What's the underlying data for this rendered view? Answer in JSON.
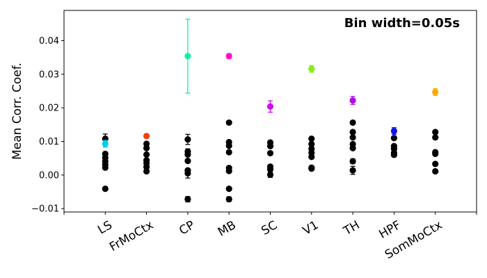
{
  "chart_data": {
    "type": "scatter",
    "annotation": "Bin width=0.05s",
    "ylabel": "Mean Corr. Coef.",
    "xlabel": "",
    "categories": [
      "LS",
      "FrMoCtx",
      "CP",
      "MB",
      "SC",
      "V1",
      "TH",
      "HPF",
      "SomMoCtx"
    ],
    "ylim": [
      -0.011,
      0.049
    ],
    "yticks": [
      -0.01,
      0.0,
      0.01,
      0.02,
      0.03,
      0.04
    ],
    "ytick_labels": [
      "−0.01",
      "0.00",
      "0.01",
      "0.02",
      "0.03",
      "0.04"
    ],
    "grid": false,
    "colored_points": [
      {
        "category": "LS",
        "value": 0.0093,
        "err": 0.001,
        "color": "#00ccee"
      },
      {
        "category": "FrMoCtx",
        "value": 0.0116,
        "err": 0.0006,
        "color": "#ee4411"
      },
      {
        "category": "CP",
        "value": 0.0354,
        "err": 0.011,
        "color": "#11eeaa"
      },
      {
        "category": "MB",
        "value": 0.0354,
        "err": 0.0007,
        "color": "#ff11cc"
      },
      {
        "category": "SC",
        "value": 0.0204,
        "err": 0.0017,
        "color": "#cc11ee"
      },
      {
        "category": "V1",
        "value": 0.0316,
        "err": 0.001,
        "color": "#88ee11"
      },
      {
        "category": "TH",
        "value": 0.0222,
        "err": 0.0012,
        "color": "#aa11dd"
      },
      {
        "category": "HPF",
        "value": 0.0131,
        "err": 0.001,
        "color": "#1111ee"
      },
      {
        "category": "SomMoCtx",
        "value": 0.0247,
        "err": 0.001,
        "color": "#ffaa00"
      }
    ],
    "black_points": [
      {
        "category": "LS",
        "values": [
          0.0108,
          0.0063,
          0.0052,
          0.0041,
          0.0031,
          0.0022,
          -0.0041
        ],
        "err": [
          0.0014,
          0.0004,
          0.0004,
          0.0004,
          0.0004,
          0.0004,
          0.0004
        ]
      },
      {
        "category": "FrMoCtx",
        "values": [
          0.0093,
          0.008,
          0.0061,
          0.0044,
          0.0035,
          0.0024,
          0.0011
        ],
        "err": [
          0.0004,
          0.0004,
          0.0004,
          0.0004,
          0.0004,
          0.0004,
          0.0004
        ]
      },
      {
        "category": "CP",
        "values": [
          0.0106,
          0.007,
          0.0061,
          0.0042,
          0.0014,
          0.0005,
          -0.0072
        ],
        "err": [
          0.0015,
          0.0008,
          0.0005,
          0.0005,
          0.0005,
          0.0014,
          0.0008
        ]
      },
      {
        "category": "MB",
        "values": [
          0.0156,
          0.0098,
          0.0087,
          0.0068,
          0.0021,
          0.0012,
          -0.0041,
          -0.0072
        ],
        "err": [
          0.0004,
          0.0004,
          0.0004,
          0.0004,
          0.0004,
          0.0004,
          0.0004,
          0.0007
        ]
      },
      {
        "category": "SC",
        "values": [
          0.0097,
          0.0086,
          0.0065,
          0.0025,
          0.0017,
          0.0001
        ],
        "err": [
          0.0004,
          0.0004,
          0.0004,
          0.0004,
          0.0004,
          0.0008
        ]
      },
      {
        "category": "V1",
        "values": [
          0.0108,
          0.0092,
          0.0078,
          0.0066,
          0.0054,
          0.0022,
          0.0019
        ],
        "err": [
          0.0004,
          0.0004,
          0.0004,
          0.0004,
          0.0004,
          0.0004,
          0.0004
        ]
      },
      {
        "category": "TH",
        "values": [
          0.0156,
          0.0128,
          0.0112,
          0.0092,
          0.008,
          0.0041,
          0.0014
        ],
        "err": [
          0.0004,
          0.0004,
          0.0004,
          0.0004,
          0.0004,
          0.0007,
          0.0012
        ]
      },
      {
        "category": "HPF",
        "values": [
          0.011,
          0.0086,
          0.0078,
          0.0066,
          0.006
        ],
        "err": [
          0.0004,
          0.0004,
          0.0004,
          0.0004,
          0.0004
        ]
      },
      {
        "category": "SomMoCtx",
        "values": [
          0.0128,
          0.0112,
          0.0068,
          0.0063,
          0.0033,
          0.0011
        ],
        "err": [
          0.0004,
          0.0004,
          0.0004,
          0.0004,
          0.0004,
          0.0004
        ]
      }
    ]
  }
}
